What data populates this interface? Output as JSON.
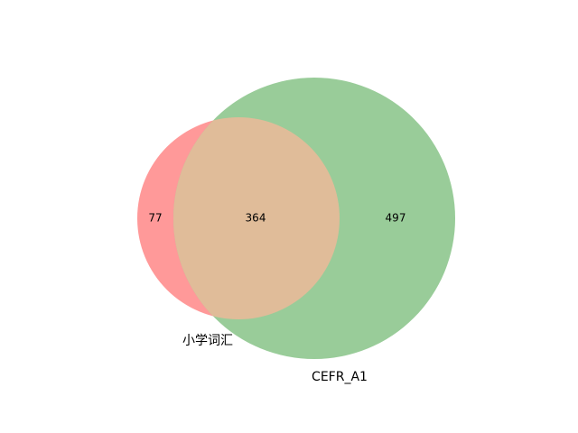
{
  "chart_data": {
    "type": "venn",
    "sets": [
      {
        "name": "小学词汇",
        "color": "#ff9999"
      },
      {
        "name": "CEFR_A1",
        "color": "#99cc99"
      }
    ],
    "regions": {
      "only_left": 77,
      "intersection": 364,
      "only_right": 497
    },
    "intersection_color": "#e0bc99"
  }
}
